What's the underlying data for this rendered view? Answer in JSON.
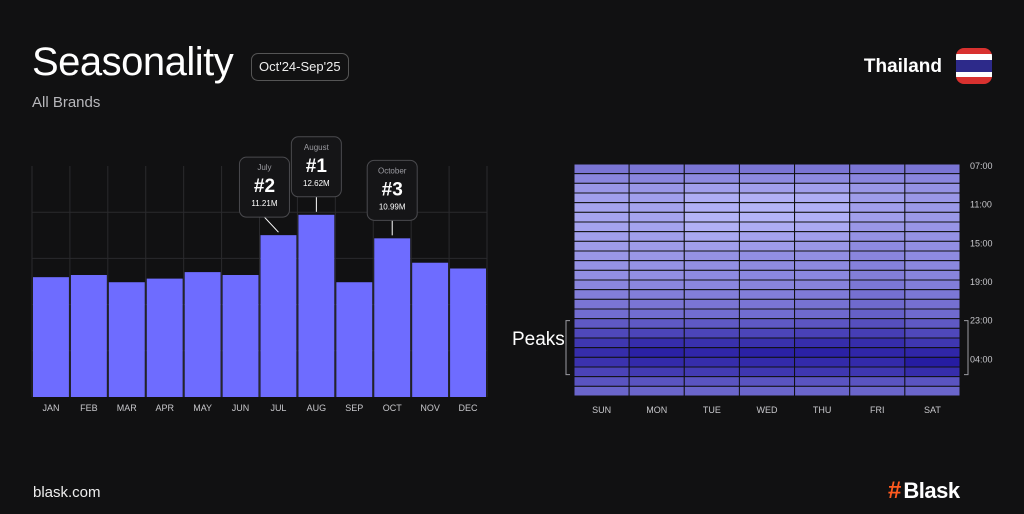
{
  "header": {
    "title": "Seasonality",
    "period": "Oct'24-Sep'25",
    "subtitle": "All Brands"
  },
  "country": {
    "name": "Thailand",
    "flag_colors": [
      "#d8312f",
      "#ffffff",
      "#2d2a8a",
      "#ffffff",
      "#d8312f"
    ]
  },
  "footer": {
    "site": "blask.com",
    "logo_mark": "#",
    "logo_text": "Blask"
  },
  "colors": {
    "bar": "#6e6cff",
    "accent": "#ff5a1f",
    "background": "#111112"
  },
  "peaks_label": "Peaks",
  "chart_data": [
    {
      "type": "bar",
      "categories": [
        "JAN",
        "FEB",
        "MAR",
        "APR",
        "MAY",
        "JUN",
        "JUL",
        "AUG",
        "SEP",
        "OCT",
        "NOV",
        "DEC"
      ],
      "values": [
        8.3,
        8.45,
        7.95,
        8.2,
        8.65,
        8.45,
        11.21,
        12.62,
        7.95,
        10.99,
        9.3,
        8.9
      ],
      "ylim": [
        0,
        16
      ],
      "grid": true,
      "annotations": [
        {
          "category": "AUG",
          "month": "August",
          "rank": "#1",
          "value": "12.62M"
        },
        {
          "category": "JUL",
          "month": "July",
          "rank": "#2",
          "value": "11.21M"
        },
        {
          "category": "OCT",
          "month": "October",
          "rank": "#3",
          "value": "10.99M"
        }
      ]
    },
    {
      "type": "heatmap",
      "x": [
        "SUN",
        "MON",
        "TUE",
        "WED",
        "THU",
        "FRI",
        "SAT"
      ],
      "y_tick_labels": [
        "07:00",
        "11:00",
        "15:00",
        "19:00",
        "23:00",
        "04:00"
      ],
      "y_start_hour": 7,
      "rows": 24,
      "values_by_day": [
        [
          0.45,
          0.35,
          0.25,
          0.2,
          0.18,
          0.17,
          0.18,
          0.2,
          0.22,
          0.25,
          0.28,
          0.3,
          0.35,
          0.4,
          0.45,
          0.5,
          0.62,
          0.72,
          0.82,
          0.88,
          0.85,
          0.75,
          0.65,
          0.55
        ],
        [
          0.45,
          0.35,
          0.25,
          0.2,
          0.18,
          0.17,
          0.18,
          0.2,
          0.22,
          0.25,
          0.28,
          0.3,
          0.35,
          0.4,
          0.45,
          0.5,
          0.62,
          0.74,
          0.88,
          0.95,
          0.9,
          0.8,
          0.65,
          0.55
        ],
        [
          0.45,
          0.33,
          0.2,
          0.12,
          0.1,
          0.08,
          0.1,
          0.15,
          0.2,
          0.28,
          0.3,
          0.32,
          0.35,
          0.4,
          0.45,
          0.5,
          0.62,
          0.74,
          0.86,
          0.92,
          0.88,
          0.8,
          0.65,
          0.55
        ],
        [
          0.45,
          0.33,
          0.2,
          0.1,
          0.08,
          0.08,
          0.12,
          0.18,
          0.22,
          0.3,
          0.32,
          0.34,
          0.36,
          0.4,
          0.45,
          0.5,
          0.62,
          0.74,
          0.86,
          0.95,
          0.9,
          0.82,
          0.65,
          0.55
        ],
        [
          0.45,
          0.33,
          0.2,
          0.12,
          0.1,
          0.1,
          0.14,
          0.2,
          0.25,
          0.3,
          0.33,
          0.34,
          0.37,
          0.42,
          0.47,
          0.52,
          0.64,
          0.76,
          0.88,
          0.95,
          0.9,
          0.82,
          0.65,
          0.55
        ],
        [
          0.45,
          0.35,
          0.25,
          0.22,
          0.2,
          0.2,
          0.25,
          0.28,
          0.32,
          0.35,
          0.38,
          0.4,
          0.44,
          0.48,
          0.52,
          0.58,
          0.68,
          0.78,
          0.88,
          0.92,
          0.9,
          0.82,
          0.65,
          0.55
        ],
        [
          0.45,
          0.35,
          0.28,
          0.25,
          0.24,
          0.24,
          0.26,
          0.28,
          0.3,
          0.32,
          0.34,
          0.36,
          0.4,
          0.44,
          0.48,
          0.52,
          0.62,
          0.72,
          0.82,
          0.92,
          0.98,
          0.88,
          0.65,
          0.55
        ]
      ]
    }
  ]
}
